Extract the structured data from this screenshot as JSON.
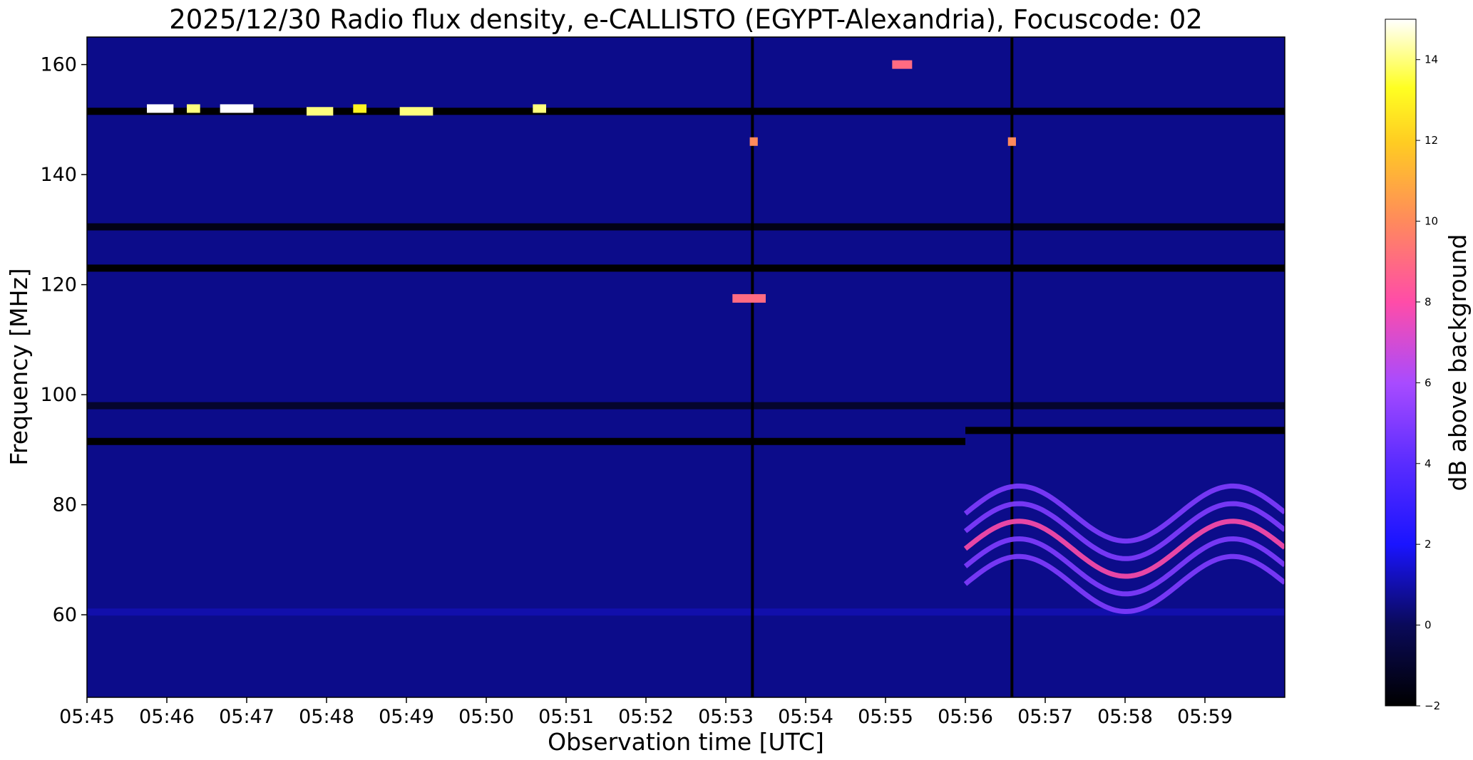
{
  "chart_data": {
    "type": "heatmap",
    "title": "2025/12/30  Radio flux density, e-CALLISTO (EGYPT-Alexandria), Focuscode: 02",
    "xlabel": "Observation time [UTC]",
    "ylabel": "Frequency [MHz]",
    "x_range": [
      "05:45",
      "06:00"
    ],
    "ylim": [
      45,
      165
    ],
    "x_ticks": [
      "05:45",
      "05:46",
      "05:47",
      "05:48",
      "05:49",
      "05:50",
      "05:51",
      "05:52",
      "05:53",
      "05:54",
      "05:55",
      "05:56",
      "05:57",
      "05:58",
      "05:59"
    ],
    "y_ticks": [
      60,
      80,
      100,
      120,
      140,
      160
    ],
    "colorbar": {
      "label": "dB above background",
      "colormap": "gnuplot2",
      "range": [
        -2,
        15
      ],
      "ticks": [
        -2,
        0,
        2,
        4,
        6,
        8,
        10,
        12,
        14
      ]
    },
    "features": [
      {
        "kind": "band",
        "freq": 151.5,
        "time": [
          "05:45",
          "06:00"
        ],
        "level": -2
      },
      {
        "kind": "band",
        "freq": 130.5,
        "time": [
          "05:45",
          "06:00"
        ],
        "level": -1.5
      },
      {
        "kind": "band",
        "freq": 123,
        "time": [
          "05:45",
          "06:00"
        ],
        "level": -2
      },
      {
        "kind": "band",
        "freq": 98,
        "time": [
          "05:45",
          "06:00"
        ],
        "level": -1
      },
      {
        "kind": "band",
        "freq": 91.5,
        "time": [
          "05:45",
          "05:56"
        ],
        "level": -2
      },
      {
        "kind": "band",
        "freq": 93.5,
        "time": [
          "05:56",
          "06:00"
        ],
        "level": -2
      },
      {
        "kind": "band",
        "freq": 60.5,
        "time": [
          "05:45",
          "06:00"
        ],
        "level": 1
      },
      {
        "kind": "vertical_line",
        "time": "05:53:20",
        "level": -2
      },
      {
        "kind": "vertical_line",
        "time": "05:56:35",
        "level": -2
      },
      {
        "kind": "burst",
        "freq": 152,
        "time": [
          "05:45:45",
          "05:46:05"
        ],
        "level": 15
      },
      {
        "kind": "burst",
        "freq": 152,
        "time": [
          "05:46:15",
          "05:46:25"
        ],
        "level": 14
      },
      {
        "kind": "burst",
        "freq": 152,
        "time": [
          "05:46:40",
          "05:47:05"
        ],
        "level": 15
      },
      {
        "kind": "burst",
        "freq": 151.5,
        "time": [
          "05:47:45",
          "05:48:05"
        ],
        "level": 14
      },
      {
        "kind": "burst",
        "freq": 152,
        "time": [
          "05:48:20",
          "05:48:30"
        ],
        "level": 13
      },
      {
        "kind": "burst",
        "freq": 151.5,
        "time": [
          "05:48:55",
          "05:49:20"
        ],
        "level": 14
      },
      {
        "kind": "burst",
        "freq": 152,
        "time": [
          "05:50:35",
          "05:50:45"
        ],
        "level": 14
      },
      {
        "kind": "burst",
        "freq": 160,
        "time": [
          "05:55:05",
          "05:55:20"
        ],
        "level": 9
      },
      {
        "kind": "burst",
        "freq": 117.5,
        "time": [
          "05:53:05",
          "05:53:30"
        ],
        "level": 9
      },
      {
        "kind": "burst",
        "freq": 146,
        "time": [
          "05:53:18",
          "05:53:24"
        ],
        "level": 10
      },
      {
        "kind": "burst",
        "freq": 146,
        "time": [
          "05:56:32",
          "05:56:38"
        ],
        "level": 10
      },
      {
        "kind": "oscillation",
        "freq_center": 72,
        "amplitude_mhz": 5,
        "time": [
          "05:56",
          "06:00"
        ],
        "level": 8
      }
    ]
  }
}
